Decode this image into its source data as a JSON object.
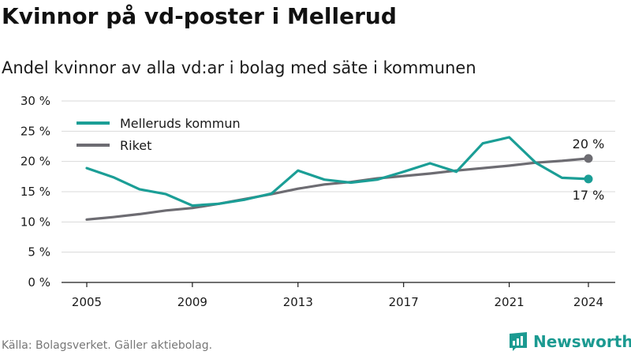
{
  "title": "Kvinnor på vd-poster i Mellerud",
  "subtitle": "Andel kvinnor av alla vd:ar i bolag med säte i kommunen",
  "source": "Källa: Bolagsverket. Gäller aktiebolag.",
  "brand": "Newsworthy",
  "colors": {
    "mellerud": "#1b9e96",
    "riket": "#6d6c72",
    "grid": "#d9d9d9",
    "axis": "#1a1a1a"
  },
  "chart_data": {
    "type": "line",
    "title": "Kvinnor på vd-poster i Mellerud",
    "subtitle": "Andel kvinnor av alla vd:ar i bolag med säte i kommunen",
    "x": [
      2005,
      2006,
      2007,
      2008,
      2009,
      2010,
      2011,
      2012,
      2013,
      2014,
      2015,
      2016,
      2017,
      2018,
      2019,
      2020,
      2021,
      2022,
      2023,
      2024
    ],
    "x_ticks": [
      "2005",
      "2009",
      "2013",
      "2017",
      "2021",
      "2024"
    ],
    "y_ticks": [
      "0 %",
      "5 %",
      "10 %",
      "15 %",
      "20 %",
      "25 %",
      "30 %"
    ],
    "ylim": [
      0,
      30
    ],
    "grid": "horizontal",
    "legend_position": "top-left",
    "series": [
      {
        "name": "Melleruds kommun",
        "color": "#1b9e96",
        "values": [
          18.9,
          17.4,
          15.4,
          14.6,
          12.7,
          13.0,
          13.7,
          14.7,
          18.5,
          17.0,
          16.5,
          17.0,
          18.3,
          19.7,
          18.3,
          23.0,
          24.0,
          19.8,
          17.3,
          17.1
        ],
        "end_label": "17 %"
      },
      {
        "name": "Riket",
        "color": "#6d6c72",
        "values": [
          10.4,
          10.8,
          11.3,
          11.9,
          12.3,
          13.0,
          13.8,
          14.6,
          15.5,
          16.2,
          16.6,
          17.2,
          17.6,
          18.0,
          18.5,
          18.9,
          19.3,
          19.8,
          20.1,
          20.5
        ],
        "end_label": "20 %"
      }
    ]
  }
}
